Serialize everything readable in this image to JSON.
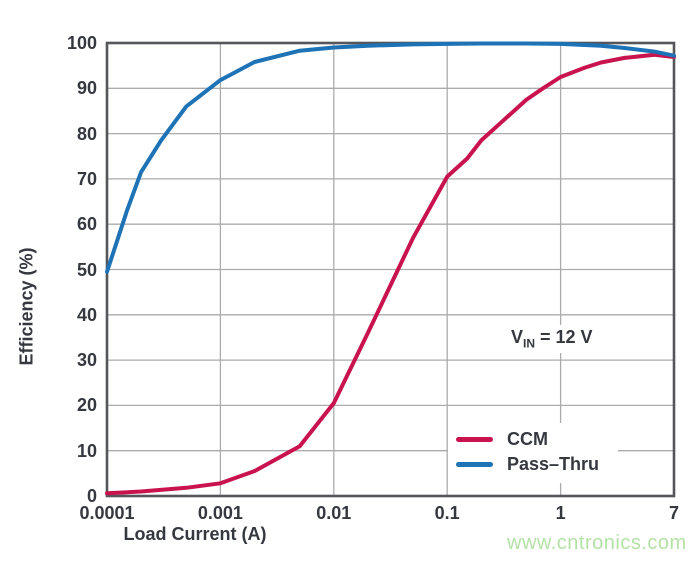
{
  "watermark": {
    "text": "www.cntronics.com",
    "color": "#b4e2a6"
  },
  "colors": {
    "ccm": "#c8134e",
    "pass_thru": "#1e73b6",
    "grid": "#ababad",
    "frame": "#54565a",
    "text": "#35383f",
    "background": "#ffffff"
  },
  "chart_data": {
    "type": "line",
    "title": "",
    "xlabel": "Load Current (A)",
    "ylabel": "Efficiency (%)",
    "x_scale": "log",
    "xlim": [
      0.0001,
      7
    ],
    "ylim": [
      0,
      100
    ],
    "grid": "on",
    "legend_position": "lower-right-inside",
    "annotation": {
      "base": "V",
      "sub": "IN",
      "rest": " = 12 V"
    },
    "x_ticks": [
      {
        "label": "0.0001",
        "value": 0.0001
      },
      {
        "label": "0.001",
        "value": 0.001
      },
      {
        "label": "0.01",
        "value": 0.01
      },
      {
        "label": "0.1",
        "value": 0.1
      },
      {
        "label": "1",
        "value": 1
      },
      {
        "label": "7",
        "value": 7
      }
    ],
    "x_gridlines": [
      0.001,
      0.01,
      0.1,
      1
    ],
    "y_ticks": [
      0,
      10,
      20,
      30,
      40,
      50,
      60,
      70,
      80,
      90,
      100
    ],
    "legend": [
      {
        "name": "CCM",
        "color": "#c8134e"
      },
      {
        "name": "Pass–Thru",
        "color": "#1e73b6"
      }
    ],
    "series": [
      {
        "name": "CCM",
        "color": "#c8134e",
        "points": [
          [
            0.0001,
            0.6
          ],
          [
            0.0002,
            1.0
          ],
          [
            0.0005,
            1.8
          ],
          [
            0.001,
            2.8
          ],
          [
            0.002,
            5.5
          ],
          [
            0.005,
            11
          ],
          [
            0.01,
            20.5
          ],
          [
            0.02,
            36
          ],
          [
            0.05,
            57
          ],
          [
            0.1,
            70.5
          ],
          [
            0.15,
            74.5
          ],
          [
            0.2,
            78.5
          ],
          [
            0.3,
            82.5
          ],
          [
            0.5,
            87.5
          ],
          [
            0.7,
            90
          ],
          [
            1,
            92.5
          ],
          [
            1.5,
            94.5
          ],
          [
            2,
            95.7
          ],
          [
            3,
            96.7
          ],
          [
            5,
            97.4
          ],
          [
            7,
            96.9
          ]
        ]
      },
      {
        "name": "Pass–Thru",
        "color": "#1e73b6",
        "points": [
          [
            0.0001,
            49.5
          ],
          [
            0.00015,
            63
          ],
          [
            0.0002,
            71.5
          ],
          [
            0.0003,
            78.5
          ],
          [
            0.0005,
            86
          ],
          [
            0.001,
            91.8
          ],
          [
            0.002,
            95.8
          ],
          [
            0.005,
            98.3
          ],
          [
            0.01,
            99.0
          ],
          [
            0.02,
            99.4
          ],
          [
            0.05,
            99.7
          ],
          [
            0.1,
            99.8
          ],
          [
            0.2,
            99.9
          ],
          [
            0.5,
            99.9
          ],
          [
            1,
            99.8
          ],
          [
            2,
            99.4
          ],
          [
            3,
            98.9
          ],
          [
            5,
            98.1
          ],
          [
            7,
            97.2
          ]
        ]
      }
    ]
  }
}
